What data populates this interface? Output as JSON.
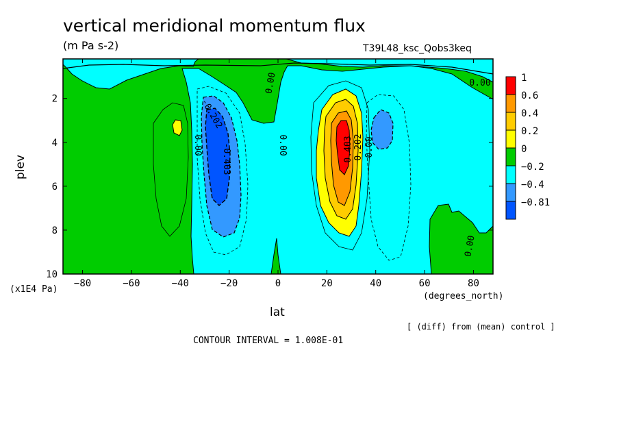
{
  "header": {
    "title": "vertical meridional momentum flux",
    "units": "(m Pa s-2)",
    "run_name": "T39L48_ksc_Qobs3keq"
  },
  "footer": {
    "contour_interval": "CONTOUR INTERVAL = 1.008E-01",
    "diff_note": "[ (diff) from (mean) control ]"
  },
  "chart_data": {
    "type": "heatmap",
    "title": "vertical meridional momentum flux",
    "subtitle": "(m Pa s-2)",
    "xlabel": "lat",
    "xunit": "(degrees_north)",
    "ylabel": "plev",
    "yunit": "(x1E4 Pa)",
    "xlim": [
      -88,
      88
    ],
    "ylim": [
      10,
      0.2
    ],
    "x_ticks": [
      -80,
      -60,
      -40,
      -20,
      0,
      20,
      40,
      60,
      80
    ],
    "x_tick_labels": [
      "−80",
      "−60",
      "−40",
      "−20",
      "0",
      "20",
      "40",
      "60",
      "80"
    ],
    "y_ticks": [
      2,
      4,
      6,
      8,
      10
    ],
    "y_tick_labels": [
      "2",
      "4",
      "6",
      "8",
      "10"
    ],
    "colorbar": {
      "levels": [
        "1",
        "0.6",
        "0.4",
        "0.2",
        "0",
        "−0.2",
        "−0.4",
        "−0.81"
      ],
      "colors": [
        "#ff0000",
        "#ff9900",
        "#ffcc00",
        "#ffff00",
        "#00cc00",
        "#00ffff",
        "#3399ff",
        "#0055ff"
      ]
    },
    "contour_labels": [
      "0.00",
      "0.00",
      "0.00",
      "0.00",
      "-0.202",
      "-0.403",
      "0.403",
      "0.202",
      "0.00",
      "0.00"
    ],
    "features": [
      {
        "name": "southern negative core",
        "lat": -26,
        "plev": 5.0,
        "value": -0.81
      },
      {
        "name": "northern positive core",
        "lat": 26,
        "plev": 4.0,
        "value": 1.0
      },
      {
        "name": "secondary negative",
        "lat": 43,
        "plev": 3.5,
        "value": -0.3
      },
      {
        "name": "secondary positive",
        "lat": -41,
        "plev": 3.2,
        "value": 0.25
      }
    ]
  }
}
